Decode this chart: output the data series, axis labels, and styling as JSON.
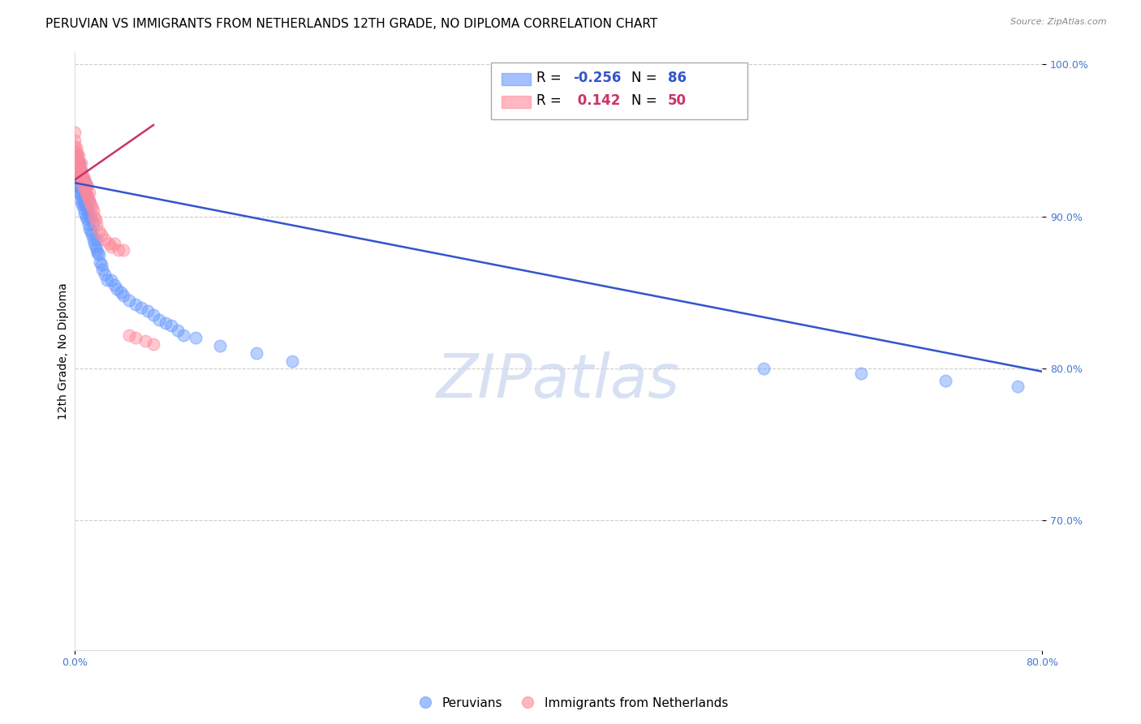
{
  "title": "PERUVIAN VS IMMIGRANTS FROM NETHERLANDS 12TH GRADE, NO DIPLOMA CORRELATION CHART",
  "source": "Source: ZipAtlas.com",
  "ylabel": "12th Grade, No Diploma",
  "legend_blue_r": "-0.256",
  "legend_blue_n": "86",
  "legend_pink_r": "0.142",
  "legend_pink_n": "50",
  "xlim": [
    0.0,
    0.8
  ],
  "ylim": [
    0.615,
    1.008
  ],
  "yticks": [
    0.7,
    0.8,
    0.9,
    1.0
  ],
  "ytick_labels": [
    "70.0%",
    "80.0%",
    "90.0%",
    "100.0%"
  ],
  "blue_color": "#6699ff",
  "pink_color": "#ff8899",
  "blue_line_color": "#3355cc",
  "pink_line_color": "#cc3366",
  "watermark_text": "ZIPatlas",
  "blue_scatter_x": [
    0.0,
    0.0,
    0.001,
    0.001,
    0.001,
    0.002,
    0.002,
    0.002,
    0.002,
    0.003,
    0.003,
    0.003,
    0.003,
    0.004,
    0.004,
    0.004,
    0.004,
    0.004,
    0.005,
    0.005,
    0.005,
    0.005,
    0.005,
    0.006,
    0.006,
    0.006,
    0.006,
    0.007,
    0.007,
    0.007,
    0.007,
    0.008,
    0.008,
    0.008,
    0.008,
    0.009,
    0.009,
    0.009,
    0.01,
    0.01,
    0.01,
    0.01,
    0.011,
    0.011,
    0.012,
    0.012,
    0.012,
    0.013,
    0.013,
    0.014,
    0.015,
    0.015,
    0.016,
    0.017,
    0.018,
    0.018,
    0.019,
    0.02,
    0.021,
    0.022,
    0.023,
    0.025,
    0.027,
    0.03,
    0.033,
    0.035,
    0.038,
    0.04,
    0.045,
    0.05,
    0.055,
    0.06,
    0.065,
    0.07,
    0.075,
    0.08,
    0.085,
    0.09,
    0.1,
    0.12,
    0.15,
    0.18,
    0.57,
    0.65,
    0.72,
    0.78
  ],
  "blue_scatter_y": [
    0.92,
    0.925,
    0.93,
    0.935,
    0.94,
    0.92,
    0.925,
    0.935,
    0.94,
    0.915,
    0.92,
    0.925,
    0.935,
    0.915,
    0.92,
    0.925,
    0.93,
    0.935,
    0.91,
    0.915,
    0.92,
    0.925,
    0.93,
    0.908,
    0.912,
    0.918,
    0.925,
    0.905,
    0.91,
    0.918,
    0.925,
    0.902,
    0.908,
    0.915,
    0.922,
    0.9,
    0.907,
    0.915,
    0.898,
    0.905,
    0.912,
    0.92,
    0.895,
    0.905,
    0.892,
    0.9,
    0.91,
    0.89,
    0.9,
    0.888,
    0.885,
    0.895,
    0.882,
    0.88,
    0.878,
    0.885,
    0.876,
    0.875,
    0.87,
    0.868,
    0.865,
    0.862,
    0.858,
    0.858,
    0.855,
    0.852,
    0.85,
    0.848,
    0.845,
    0.842,
    0.84,
    0.838,
    0.835,
    0.832,
    0.83,
    0.828,
    0.825,
    0.822,
    0.82,
    0.815,
    0.81,
    0.805,
    0.8,
    0.797,
    0.792,
    0.788
  ],
  "pink_scatter_x": [
    0.0,
    0.0,
    0.0,
    0.0,
    0.0,
    0.001,
    0.001,
    0.001,
    0.002,
    0.002,
    0.002,
    0.003,
    0.003,
    0.003,
    0.004,
    0.004,
    0.005,
    0.005,
    0.005,
    0.006,
    0.006,
    0.007,
    0.007,
    0.008,
    0.008,
    0.009,
    0.009,
    0.01,
    0.01,
    0.011,
    0.012,
    0.012,
    0.013,
    0.014,
    0.015,
    0.016,
    0.017,
    0.018,
    0.02,
    0.022,
    0.025,
    0.028,
    0.03,
    0.033,
    0.036,
    0.04,
    0.045,
    0.05,
    0.058,
    0.065
  ],
  "pink_scatter_y": [
    0.938,
    0.942,
    0.946,
    0.95,
    0.955,
    0.935,
    0.94,
    0.945,
    0.932,
    0.937,
    0.942,
    0.93,
    0.935,
    0.94,
    0.928,
    0.933,
    0.925,
    0.93,
    0.935,
    0.922,
    0.928,
    0.92,
    0.926,
    0.918,
    0.924,
    0.916,
    0.922,
    0.914,
    0.92,
    0.912,
    0.91,
    0.916,
    0.908,
    0.906,
    0.904,
    0.9,
    0.898,
    0.895,
    0.89,
    0.888,
    0.885,
    0.882,
    0.88,
    0.882,
    0.878,
    0.878,
    0.822,
    0.82,
    0.818,
    0.816
  ],
  "blue_line_x": [
    0.0,
    0.8
  ],
  "blue_line_y": [
    0.922,
    0.798
  ],
  "pink_line_x": [
    0.0,
    0.065
  ],
  "pink_line_y": [
    0.924,
    0.96
  ],
  "background_color": "#ffffff",
  "grid_color": "#cccccc",
  "title_fontsize": 11,
  "label_fontsize": 10,
  "tick_fontsize": 9
}
